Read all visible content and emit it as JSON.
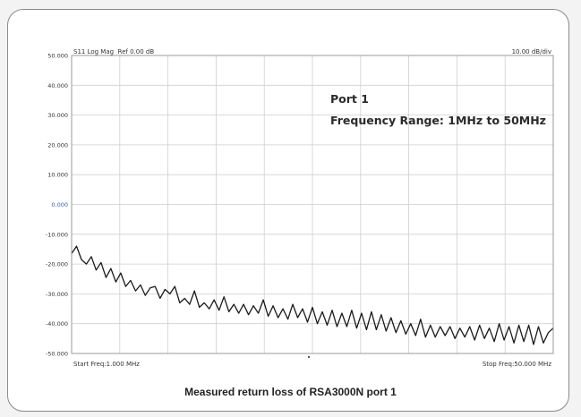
{
  "chart_data": {
    "type": "line",
    "trace_label": "S11 Log Mag",
    "ref_label": "Ref 0.00 dB",
    "scale_label": "10.00 dB/div",
    "start_label": "Start Freq:1.000 MHz",
    "stop_label": "Stop Freq:50.000 MHz",
    "annotation_line1": "Port 1",
    "annotation_line2": "Frequency Range: 1MHz to 50MHz",
    "caption": "Measured return loss of RSA3000N port 1",
    "ylim": [
      -50,
      50
    ],
    "xlim": [
      1,
      50
    ],
    "y_tick_labels": [
      "50.000",
      "40.000",
      "30.000",
      "20.000",
      "10.000",
      "0.000",
      "-10.000",
      "-20.000",
      "-30.000",
      "-40.000",
      "-50.000"
    ],
    "ref_tick_color": "#3a5bb5",
    "trace_color": "#1a1a1a",
    "grid": true,
    "series": [
      {
        "x": [
          1.0,
          1.5,
          2.0,
          2.5,
          3.0,
          3.5,
          4.0,
          4.5,
          5.0,
          5.5,
          6.0,
          6.5,
          7.0,
          7.5,
          8.0,
          8.5,
          9.0,
          9.5,
          10.0,
          10.5,
          11.0,
          11.5,
          12.0,
          12.5,
          13.0,
          13.5,
          14.0,
          14.5,
          15.0,
          15.5,
          16.0,
          16.5,
          17.0,
          17.5,
          18.0,
          18.5,
          19.0,
          19.5,
          20.0,
          20.5,
          21.0,
          21.5,
          22.0,
          22.5,
          23.0,
          23.5,
          24.0,
          24.5,
          25.0,
          25.5,
          26.0,
          26.5,
          27.0,
          27.5,
          28.0,
          28.5,
          29.0,
          29.5,
          30.0,
          30.5,
          31.0,
          31.5,
          32.0,
          32.5,
          33.0,
          33.5,
          34.0,
          34.5,
          35.0,
          35.5,
          36.0,
          36.5,
          37.0,
          37.5,
          38.0,
          38.5,
          39.0,
          39.5,
          40.0,
          40.5,
          41.0,
          41.5,
          42.0,
          42.5,
          43.0,
          43.5,
          44.0,
          44.5,
          45.0,
          45.5,
          46.0,
          46.5,
          47.0,
          47.5,
          48.0,
          48.5,
          49.0,
          49.5,
          50.0
        ],
        "values": [
          -16.5,
          -14.0,
          -18.5,
          -20.0,
          -17.5,
          -22.0,
          -19.5,
          -24.5,
          -21.5,
          -26.0,
          -23.0,
          -27.5,
          -25.5,
          -29.0,
          -27.0,
          -30.5,
          -28.0,
          -27.5,
          -31.5,
          -28.5,
          -30.0,
          -27.5,
          -33.0,
          -31.5,
          -33.5,
          -29.0,
          -34.5,
          -33.0,
          -35.0,
          -32.0,
          -35.5,
          -31.0,
          -36.0,
          -33.5,
          -36.5,
          -33.5,
          -37.0,
          -34.0,
          -36.5,
          -32.0,
          -37.5,
          -34.0,
          -38.0,
          -35.0,
          -38.5,
          -33.5,
          -38.0,
          -35.0,
          -39.5,
          -34.5,
          -40.0,
          -36.0,
          -40.5,
          -35.5,
          -41.0,
          -36.5,
          -41.0,
          -35.5,
          -41.5,
          -36.5,
          -42.0,
          -36.0,
          -42.0,
          -37.0,
          -42.5,
          -38.0,
          -43.0,
          -39.0,
          -43.5,
          -40.0,
          -44.0,
          -38.5,
          -44.5,
          -40.5,
          -44.5,
          -41.0,
          -44.0,
          -41.0,
          -45.0,
          -41.5,
          -44.5,
          -41.0,
          -45.5,
          -40.5,
          -45.0,
          -41.5,
          -46.0,
          -40.0,
          -45.5,
          -41.0,
          -46.5,
          -40.5,
          -46.0,
          -40.5,
          -47.0,
          -41.0,
          -46.5,
          -43.0,
          -41.5
        ]
      }
    ]
  }
}
